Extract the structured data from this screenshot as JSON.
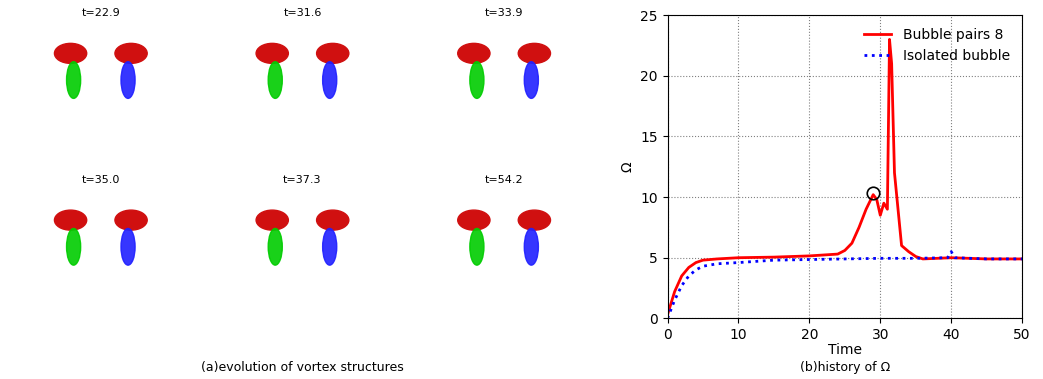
{
  "panel_a": {
    "caption": "(a)evolution of vortex structures",
    "frames": [
      "t=22.9",
      "t=31.6",
      "t=33.9",
      "t=35.0",
      "t=37.3",
      "t=54.2"
    ]
  },
  "chart_data": {
    "type": "line",
    "caption": "(b)history of Ω",
    "x_label": "Time",
    "y_label": "Ω",
    "xlim": [
      0,
      50
    ],
    "xticks": [
      0,
      10,
      20,
      30,
      40,
      50
    ],
    "ylim": [
      0,
      25
    ],
    "yticks": [
      0,
      5,
      10,
      15,
      20,
      25
    ],
    "grid": true,
    "legend": "upper right",
    "series": [
      {
        "name": "Bubble pairs 8",
        "color": "#ff0000",
        "line_style": "solid",
        "x": [
          0,
          1,
          2,
          3,
          4,
          5,
          7,
          10,
          15,
          20,
          24,
          25,
          26,
          27,
          28,
          29,
          29.5,
          30,
          30.5,
          31,
          31.3,
          31.6,
          32,
          33,
          34,
          35,
          36,
          40,
          45,
          50
        ],
        "values": [
          0.3,
          2.2,
          3.5,
          4.2,
          4.6,
          4.8,
          4.9,
          5.0,
          5.05,
          5.15,
          5.3,
          5.6,
          6.2,
          7.5,
          9.0,
          10.2,
          9.8,
          8.5,
          9.5,
          9.0,
          23.0,
          21.0,
          12.0,
          6.0,
          5.5,
          5.1,
          4.9,
          5.0,
          4.9,
          4.9
        ]
      },
      {
        "name": "Isolated bubble",
        "color": "#0000ff",
        "line_style": "dotted",
        "x": [
          0,
          1,
          2,
          3,
          4,
          5,
          7,
          10,
          15,
          20,
          25,
          30,
          35,
          39.5,
          40,
          40.5,
          45,
          50
        ],
        "values": [
          0,
          1.5,
          2.7,
          3.5,
          4.0,
          4.3,
          4.5,
          4.6,
          4.8,
          4.85,
          4.9,
          4.95,
          4.95,
          5.0,
          5.5,
          5.0,
          4.9,
          4.9
        ]
      },
      {
        "color": "#000000",
        "marker": "circle",
        "x": [
          29
        ],
        "values": [
          10.3
        ]
      }
    ]
  }
}
